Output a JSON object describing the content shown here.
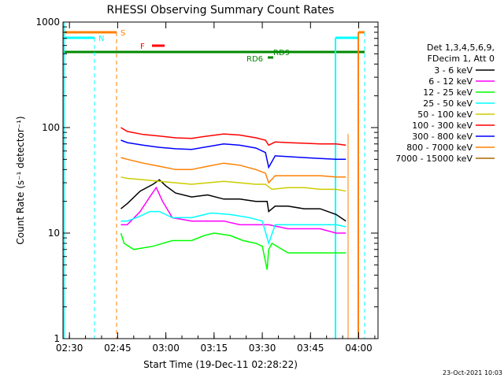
{
  "chart_data": {
    "type": "line",
    "title": "RHESSI Observing Summary Count Rates",
    "xlabel": "Start Time (19-Dec-11 02:28:22)",
    "ylabel": "Count Rate (s⁻¹ detector⁻¹)",
    "y_scale": "log",
    "ylim": [
      1,
      1000
    ],
    "xlim_minutes_after_0228": [
      0,
      98
    ],
    "x_ticks": [
      {
        "label": "02:30",
        "min": 2
      },
      {
        "label": "02:45",
        "min": 17
      },
      {
        "label": "03:00",
        "min": 32
      },
      {
        "label": "03:15",
        "min": 47
      },
      {
        "label": "03:30",
        "min": 62
      },
      {
        "label": "03:45",
        "min": 77
      },
      {
        "label": "04:00",
        "min": 92
      }
    ],
    "y_ticks": [
      {
        "label": "1",
        "value": 1
      },
      {
        "label": "10",
        "value": 10
      },
      {
        "label": "100",
        "value": 100
      },
      {
        "label": "1000",
        "value": 1000
      }
    ],
    "legend": {
      "placement": "right",
      "header1": "Det 1,3,4,5,6,9,",
      "header2": "FDecim 1, Att 0"
    },
    "series": [
      {
        "name": "3 - 6 keV",
        "color": "#000000",
        "x": [
          18,
          20,
          24,
          28,
          30,
          32,
          35,
          40,
          45,
          50,
          55,
          60,
          63.5,
          64,
          66,
          70,
          75,
          80,
          85,
          88
        ],
        "values": [
          17,
          19,
          25,
          29,
          32,
          28,
          24,
          22,
          23,
          21,
          21,
          20,
          20,
          16,
          18,
          18,
          17,
          17,
          15,
          13
        ]
      },
      {
        "name": "6 - 12 keV",
        "color": "#ff00ff",
        "x": [
          18,
          20,
          24,
          27,
          29,
          31,
          34,
          40,
          45,
          50,
          55,
          60,
          64,
          70,
          75,
          80,
          85,
          88
        ],
        "values": [
          12,
          12,
          16,
          22,
          27,
          20,
          14,
          13,
          13,
          13,
          12,
          12,
          12,
          11,
          11,
          11,
          10,
          10
        ]
      },
      {
        "name": "12 - 25 keV",
        "color": "#00ff00",
        "x": [
          18,
          19,
          22,
          28,
          34,
          40,
          44,
          47,
          52,
          56,
          60,
          62,
          63.5,
          64,
          65,
          70,
          75,
          80,
          85,
          88
        ],
        "values": [
          10,
          8,
          7,
          7.5,
          8.5,
          8.5,
          9.5,
          10,
          9.5,
          8.5,
          8,
          7.5,
          4.5,
          7,
          8,
          6.5,
          6.5,
          6.5,
          6.5,
          6.5
        ]
      },
      {
        "name": "25 - 50 keV",
        "color": "#00ffff",
        "x": [
          18,
          20,
          24,
          27,
          30,
          34,
          40,
          46,
          52,
          58,
          62,
          64,
          66,
          70,
          75,
          80,
          85,
          88
        ],
        "values": [
          13,
          13,
          14.5,
          16,
          16,
          14,
          14,
          15.5,
          15,
          14,
          13,
          8,
          12,
          12,
          12,
          12,
          12,
          11.5
        ]
      },
      {
        "name": "50 - 100 keV",
        "color": "#cccc00",
        "x": [
          18,
          20,
          25,
          30,
          35,
          40,
          45,
          50,
          55,
          60,
          63,
          65,
          70,
          75,
          80,
          85,
          88
        ],
        "values": [
          34,
          33,
          32,
          31,
          30,
          29,
          30,
          31,
          30,
          29,
          29,
          26,
          27,
          27,
          26,
          26,
          25
        ]
      },
      {
        "name": "100 - 300 keV",
        "color": "#ff0000",
        "x": [
          18,
          20,
          25,
          30,
          35,
          40,
          45,
          50,
          55,
          60,
          63,
          64,
          66,
          70,
          75,
          80,
          85,
          88
        ],
        "values": [
          100,
          92,
          86,
          83,
          80,
          79,
          83,
          87,
          85,
          80,
          76,
          68,
          73,
          72,
          71,
          70,
          70,
          68
        ]
      },
      {
        "name": "300 - 800 keV",
        "color": "#0000ff",
        "x": [
          18,
          20,
          25,
          30,
          35,
          40,
          45,
          50,
          55,
          60,
          63,
          64,
          66,
          70,
          75,
          80,
          85,
          88
        ],
        "values": [
          76,
          72,
          68,
          65,
          63,
          62,
          66,
          70,
          68,
          64,
          58,
          42,
          54,
          53,
          52,
          51,
          50,
          50
        ]
      },
      {
        "name": "800 - 7000 keV",
        "color": "#ff8000",
        "x": [
          18,
          20,
          25,
          30,
          35,
          40,
          45,
          50,
          55,
          60,
          63,
          64,
          66,
          70,
          75,
          80,
          85,
          88
        ],
        "values": [
          52,
          50,
          46,
          43,
          40,
          40,
          43,
          46,
          44,
          40,
          37,
          30,
          35,
          35,
          35,
          35,
          34,
          34
        ]
      },
      {
        "name": "7000 - 15000 keV",
        "color": "#aa6600",
        "x": [],
        "values": []
      }
    ],
    "annotations": [
      {
        "label": "S",
        "color": "#ff8000"
      },
      {
        "label": "N",
        "color": "#00ffff"
      },
      {
        "label": "F",
        "color": "#ff0000"
      },
      {
        "label": "RD9",
        "color": "#008800"
      },
      {
        "label": "RD6",
        "color": "#008800"
      }
    ],
    "footer_timestamp": "23-Oct-2021 10:03"
  }
}
